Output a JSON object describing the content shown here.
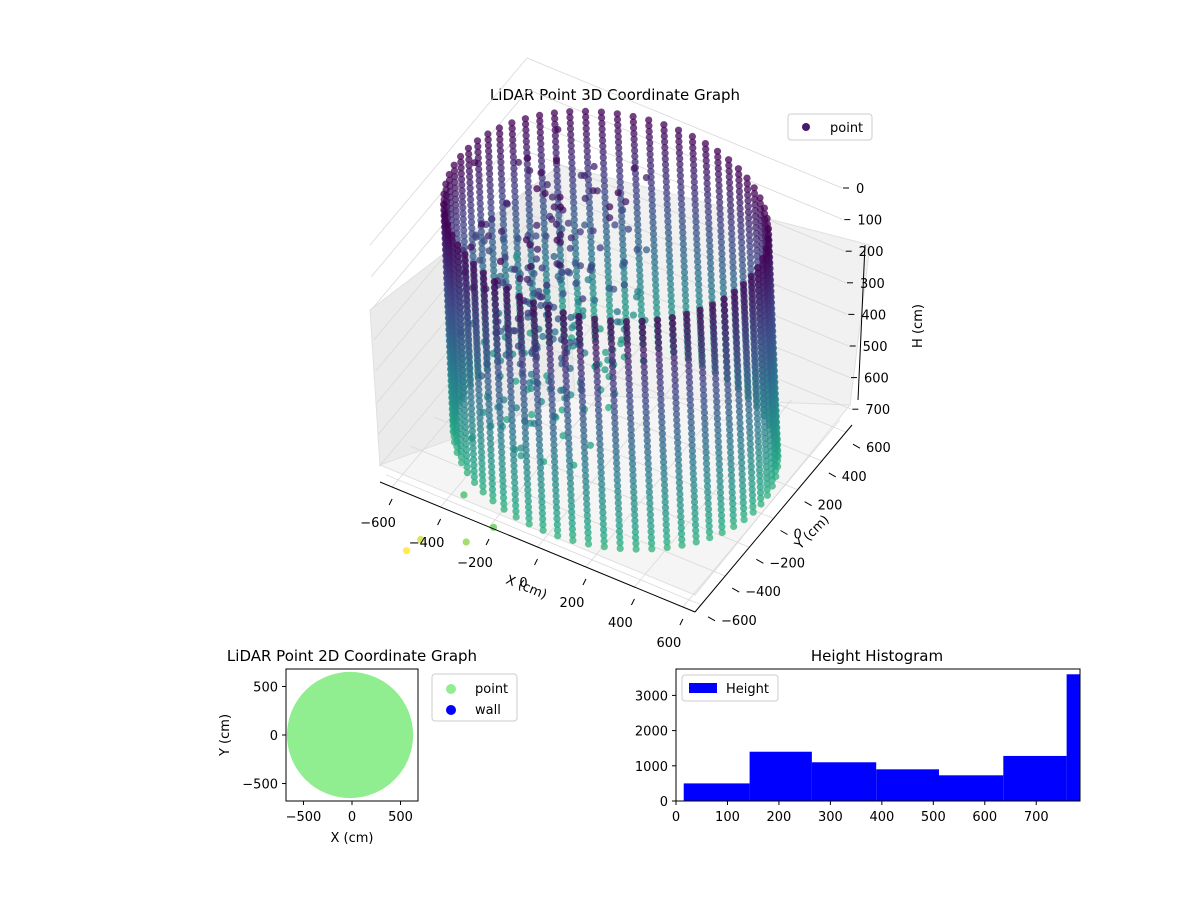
{
  "chart_data": [
    {
      "type": "scatter",
      "kind": "3d-scatter",
      "title": "LiDAR Point 3D Coordinate Graph",
      "xlabel": "X (cm)",
      "ylabel": "Y (cm)",
      "zlabel": "H (cm)",
      "xticks": [
        "−600",
        "−400",
        "−200",
        "0",
        "200",
        "400",
        "600"
      ],
      "yticks": [
        "600",
        "400",
        "200",
        "0",
        "−200",
        "−400",
        "−600"
      ],
      "zticks": [
        "0",
        "100",
        "200",
        "300",
        "400",
        "500",
        "600",
        "700"
      ],
      "xlim": [
        -650,
        650
      ],
      "ylim": [
        -650,
        650
      ],
      "zlim": [
        750,
        0
      ],
      "z_axis_inverted": true,
      "colormap": "viridis",
      "legend": {
        "placement": "top-right",
        "entries": [
          {
            "label": "point",
            "color": "#481a6c"
          }
        ]
      },
      "series": [
        {
          "name": "point",
          "description_values": {
            "ring_radius_cm": 600,
            "ring_height_range_cm": [
              0,
              730
            ],
            "scan_columns": 64
          }
        }
      ],
      "outlier_points": [
        {
          "x": -300,
          "y": -650,
          "h": 680
        },
        {
          "x": -160,
          "y": -690,
          "h": 720
        },
        {
          "x": -240,
          "y": -760,
          "h": 760
        },
        {
          "x": -420,
          "y": -780,
          "h": 800
        },
        {
          "x": -460,
          "y": -820,
          "h": 830
        },
        {
          "x": -650,
          "y": 500,
          "h": 560
        }
      ],
      "grid": true
    },
    {
      "type": "scatter",
      "title": "LiDAR Point 2D Coordinate Graph",
      "xlabel": "X (cm)",
      "ylabel": "Y (cm)",
      "xticks": [
        "−500",
        "0",
        "500"
      ],
      "yticks": [
        "500",
        "0",
        "−500"
      ],
      "xlim": [
        -680,
        680
      ],
      "ylim": [
        -680,
        680
      ],
      "legend": {
        "placement": "outside-right",
        "entries": [
          {
            "label": "point",
            "color": "#90ee90"
          },
          {
            "label": "wall",
            "color": "#0000ff"
          }
        ]
      },
      "series": [
        {
          "name": "point",
          "color": "#90ee90",
          "shape": "filled-disc",
          "center": [
            -20,
            0
          ],
          "radius_cm": 650
        },
        {
          "name": "wall",
          "color": "#0000ff",
          "points": []
        }
      ],
      "grid": false
    },
    {
      "type": "bar",
      "kind": "histogram",
      "title": "Height Histogram",
      "xticks": [
        "0",
        "100",
        "200",
        "300",
        "400",
        "500",
        "600",
        "700"
      ],
      "yticks": [
        "0",
        "1000",
        "2000",
        "3000"
      ],
      "xlim": [
        0,
        785
      ],
      "ylim": [
        0,
        3750
      ],
      "color": "#0000ff",
      "legend": {
        "placement": "top-left",
        "entries": [
          {
            "label": "Height",
            "color": "#0000ff"
          }
        ]
      },
      "bins": [
        {
          "x0": 15,
          "x1": 143,
          "count": 500
        },
        {
          "x0": 143,
          "x1": 264,
          "count": 1400
        },
        {
          "x0": 264,
          "x1": 389,
          "count": 1100
        },
        {
          "x0": 389,
          "x1": 511,
          "count": 900
        },
        {
          "x0": 511,
          "x1": 636,
          "count": 730
        },
        {
          "x0": 636,
          "x1": 759,
          "count": 1280
        },
        {
          "x0": 759,
          "x1": 785,
          "count": 3600
        }
      ],
      "grid": false
    }
  ]
}
